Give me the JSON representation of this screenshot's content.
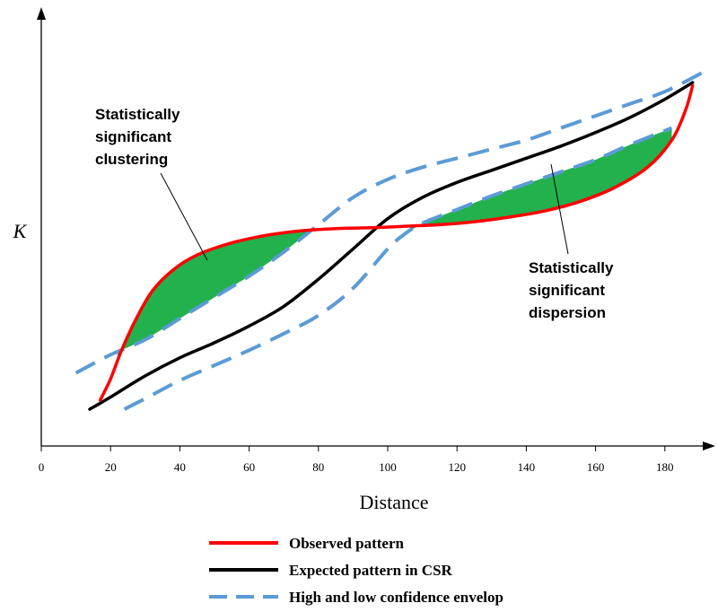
{
  "chart_data": {
    "type": "line",
    "title": "",
    "xlabel": "Distance",
    "ylabel": "K",
    "xlim": [
      0,
      195
    ],
    "x_ticks": [
      0,
      20,
      40,
      60,
      80,
      100,
      120,
      140,
      160,
      180
    ],
    "y_ticks_shown": false,
    "grid": false,
    "legend_position": "bottom",
    "series": [
      {
        "name": "Observed pattern",
        "color": "#ff0000",
        "style": "solid",
        "x": [
          17,
          20,
          23,
          27,
          32,
          38,
          45,
          55,
          65,
          75,
          85,
          95,
          105,
          115,
          125,
          135,
          145,
          155,
          165,
          175,
          182,
          186,
          188
        ],
        "y": [
          3,
          10,
          19,
          29,
          39,
          46,
          51,
          55,
          57.5,
          59,
          59.7,
          60,
          60.5,
          61,
          62,
          63.5,
          65.5,
          68.5,
          73,
          80,
          89,
          99,
          107
        ]
      },
      {
        "name": "Expected pattern in CSR",
        "color": "#000000",
        "style": "solid",
        "x": [
          14,
          20,
          30,
          40,
          50,
          60,
          70,
          80,
          90,
          100,
          110,
          120,
          130,
          140,
          150,
          160,
          170,
          180,
          188
        ],
        "y": [
          0,
          4,
          11,
          17,
          22,
          27.5,
          34,
          43,
          53,
          63,
          70,
          75,
          79,
          83,
          87,
          91.5,
          96.5,
          102.5,
          108
        ]
      },
      {
        "name": "High and low confidence envelop",
        "color": "#5b9bd5",
        "style": "dashed",
        "x": [
          10,
          20,
          30,
          40,
          50,
          60,
          70,
          80,
          90,
          100,
          110,
          120,
          130,
          140,
          150,
          160,
          170,
          180,
          192
        ],
        "y": [
          12,
          18,
          23,
          30,
          37,
          44,
          52,
          61,
          70,
          76,
          80,
          83,
          86,
          89,
          93,
          97,
          101,
          105,
          112
        ]
      },
      {
        "name": "",
        "color": "#5b9bd5",
        "style": "dashed",
        "x": [
          24,
          30,
          40,
          50,
          60,
          70,
          80,
          90,
          100,
          105,
          110,
          120,
          130,
          140,
          150,
          160,
          170,
          182
        ],
        "y": [
          0,
          3.5,
          9.5,
          14.5,
          19.5,
          25,
          31,
          40,
          53,
          58,
          61.5,
          66,
          70.5,
          74.5,
          78.5,
          82.5,
          87.5,
          93
        ]
      }
    ],
    "annotations": [
      {
        "text_lines": [
          "Statistically",
          "significant",
          "clustering"
        ]
      },
      {
        "text_lines": [
          "Statistically",
          "significant",
          "dispersion"
        ]
      }
    ],
    "shading_color": "#22b14c"
  },
  "legend": {
    "items": [
      {
        "label": "Observed pattern",
        "color": "#ff0000",
        "style": "solid"
      },
      {
        "label": "Expected pattern in CSR",
        "color": "#000000",
        "style": "solid"
      },
      {
        "label": "High and low confidence envelop",
        "color": "#5b9bd5",
        "style": "dashed"
      }
    ]
  }
}
